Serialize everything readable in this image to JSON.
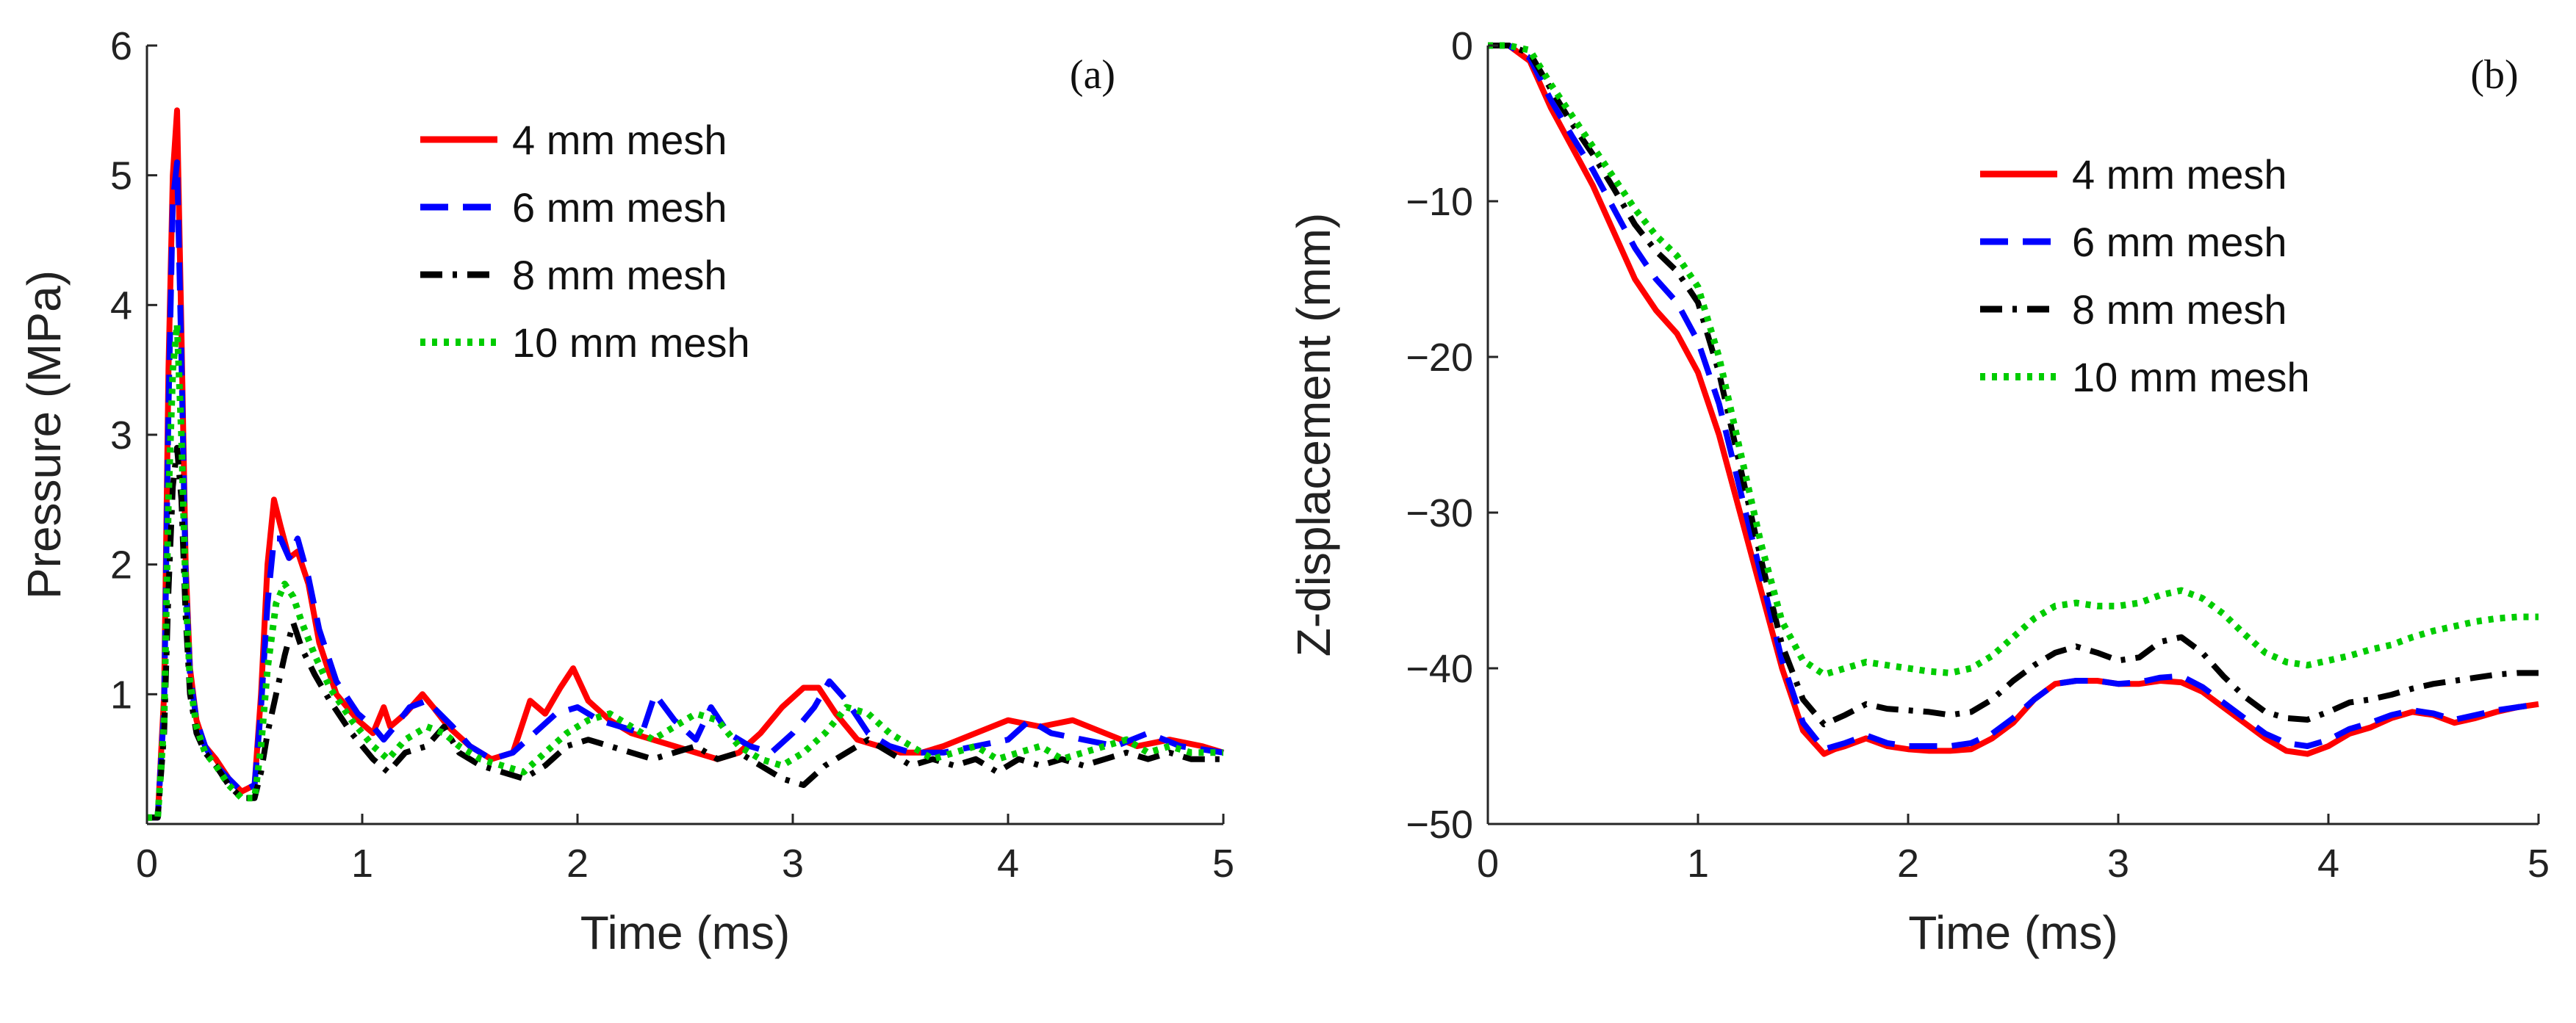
{
  "chart_data": [
    {
      "type": "line",
      "panel_label": "(a)",
      "xlabel": "Time (ms)",
      "ylabel": "Pressure (MPa)",
      "xlim": [
        0,
        5
      ],
      "ylim": [
        0,
        6
      ],
      "xticks": [
        0,
        1,
        2,
        3,
        4,
        5
      ],
      "yticks": [
        1,
        2,
        3,
        4,
        5,
        6
      ],
      "grid": false,
      "legend_position": "top-center",
      "series": [
        {
          "name": "4 mm mesh",
          "color": "#ff0000",
          "style": "solid",
          "x": [
            0,
            0.05,
            0.08,
            0.1,
            0.12,
            0.14,
            0.16,
            0.18,
            0.2,
            0.23,
            0.27,
            0.32,
            0.38,
            0.44,
            0.5,
            0.53,
            0.56,
            0.59,
            0.62,
            0.66,
            0.7,
            0.75,
            0.8,
            0.88,
            0.98,
            1.05,
            1.1,
            1.13,
            1.2,
            1.28,
            1.33,
            1.4,
            1.5,
            1.6,
            1.7,
            1.78,
            1.85,
            1.92,
            1.98,
            2.05,
            2.15,
            2.25,
            2.35,
            2.45,
            2.55,
            2.65,
            2.75,
            2.85,
            2.95,
            3.05,
            3.12,
            3.2,
            3.3,
            3.4,
            3.5,
            3.6,
            3.7,
            3.85,
            4.0,
            4.15,
            4.3,
            4.45,
            4.6,
            4.75,
            4.9,
            5.0
          ],
          "y": [
            0.05,
            0.05,
            1.0,
            3.5,
            5.0,
            5.5,
            3.8,
            2.0,
            1.2,
            0.8,
            0.6,
            0.5,
            0.35,
            0.25,
            0.3,
            1.0,
            2.0,
            2.5,
            2.3,
            2.05,
            2.1,
            1.85,
            1.4,
            1.0,
            0.8,
            0.7,
            0.9,
            0.75,
            0.85,
            1.0,
            0.9,
            0.75,
            0.6,
            0.5,
            0.55,
            0.95,
            0.85,
            1.05,
            1.2,
            0.95,
            0.8,
            0.7,
            0.65,
            0.6,
            0.55,
            0.5,
            0.55,
            0.7,
            0.9,
            1.05,
            1.05,
            0.85,
            0.65,
            0.6,
            0.55,
            0.55,
            0.6,
            0.7,
            0.8,
            0.75,
            0.8,
            0.7,
            0.6,
            0.65,
            0.6,
            0.55
          ]
        },
        {
          "name": "6 mm mesh",
          "color": "#0000ff",
          "style": "dashed",
          "x": [
            0,
            0.05,
            0.08,
            0.1,
            0.12,
            0.14,
            0.16,
            0.18,
            0.2,
            0.23,
            0.27,
            0.32,
            0.38,
            0.44,
            0.5,
            0.53,
            0.56,
            0.59,
            0.62,
            0.66,
            0.7,
            0.75,
            0.8,
            0.88,
            0.98,
            1.05,
            1.1,
            1.15,
            1.22,
            1.3,
            1.36,
            1.42,
            1.5,
            1.6,
            1.7,
            1.8,
            1.9,
            2.0,
            2.1,
            2.2,
            2.3,
            2.36,
            2.45,
            2.55,
            2.62,
            2.7,
            2.8,
            2.9,
            3.0,
            3.1,
            3.17,
            3.25,
            3.35,
            3.45,
            3.55,
            3.7,
            3.85,
            4.0,
            4.1,
            4.2,
            4.35,
            4.5,
            4.65,
            4.8,
            5.0
          ],
          "y": [
            0.05,
            0.05,
            0.9,
            3.2,
            4.8,
            5.1,
            3.6,
            1.9,
            1.15,
            0.8,
            0.6,
            0.45,
            0.35,
            0.25,
            0.3,
            0.9,
            1.7,
            2.2,
            2.2,
            2.05,
            2.2,
            1.9,
            1.5,
            1.1,
            0.85,
            0.75,
            0.65,
            0.75,
            0.9,
            0.95,
            0.85,
            0.75,
            0.6,
            0.5,
            0.55,
            0.7,
            0.85,
            0.9,
            0.8,
            0.75,
            0.7,
            1.0,
            0.8,
            0.65,
            0.9,
            0.7,
            0.6,
            0.55,
            0.7,
            0.9,
            1.1,
            0.95,
            0.7,
            0.6,
            0.55,
            0.55,
            0.6,
            0.65,
            0.8,
            0.7,
            0.65,
            0.6,
            0.7,
            0.6,
            0.55
          ]
        },
        {
          "name": "8 mm mesh",
          "color": "#000000",
          "style": "dashdot",
          "x": [
            0,
            0.05,
            0.08,
            0.1,
            0.12,
            0.14,
            0.16,
            0.18,
            0.2,
            0.23,
            0.27,
            0.32,
            0.38,
            0.44,
            0.5,
            0.53,
            0.56,
            0.6,
            0.64,
            0.68,
            0.72,
            0.78,
            0.85,
            0.95,
            1.05,
            1.12,
            1.2,
            1.3,
            1.38,
            1.45,
            1.55,
            1.65,
            1.75,
            1.85,
            1.95,
            2.05,
            2.15,
            2.25,
            2.35,
            2.45,
            2.55,
            2.65,
            2.75,
            2.85,
            2.95,
            3.05,
            3.15,
            3.25,
            3.35,
            3.45,
            3.55,
            3.65,
            3.75,
            3.85,
            3.95,
            4.05,
            4.15,
            4.25,
            4.35,
            4.45,
            4.55,
            4.65,
            4.75,
            4.85,
            5.0
          ],
          "y": [
            0.05,
            0.05,
            0.7,
            1.8,
            2.6,
            2.9,
            2.5,
            1.6,
            1.0,
            0.7,
            0.55,
            0.45,
            0.3,
            0.2,
            0.2,
            0.4,
            0.7,
            1.0,
            1.3,
            1.55,
            1.35,
            1.15,
            0.95,
            0.7,
            0.5,
            0.4,
            0.55,
            0.6,
            0.75,
            0.55,
            0.45,
            0.4,
            0.35,
            0.45,
            0.6,
            0.65,
            0.6,
            0.55,
            0.5,
            0.55,
            0.6,
            0.5,
            0.55,
            0.45,
            0.35,
            0.3,
            0.45,
            0.55,
            0.65,
            0.55,
            0.45,
            0.5,
            0.45,
            0.5,
            0.4,
            0.5,
            0.45,
            0.5,
            0.45,
            0.5,
            0.55,
            0.5,
            0.55,
            0.5,
            0.5
          ]
        },
        {
          "name": "10 mm mesh",
          "color": "#00cc00",
          "style": "dotted",
          "x": [
            0,
            0.05,
            0.08,
            0.1,
            0.12,
            0.14,
            0.16,
            0.18,
            0.2,
            0.23,
            0.27,
            0.32,
            0.38,
            0.44,
            0.5,
            0.53,
            0.56,
            0.6,
            0.64,
            0.68,
            0.72,
            0.78,
            0.85,
            0.95,
            1.05,
            1.12,
            1.2,
            1.3,
            1.38,
            1.45,
            1.55,
            1.65,
            1.75,
            1.85,
            1.95,
            2.05,
            2.15,
            2.25,
            2.35,
            2.45,
            2.55,
            2.65,
            2.75,
            2.85,
            2.95,
            3.05,
            3.15,
            3.25,
            3.35,
            3.45,
            3.55,
            3.65,
            3.75,
            3.85,
            3.95,
            4.05,
            4.15,
            4.25,
            4.35,
            4.45,
            4.55,
            4.65,
            4.75,
            4.85,
            5.0
          ],
          "y": [
            0.05,
            0.05,
            0.8,
            2.5,
            3.5,
            3.85,
            3.0,
            1.8,
            1.1,
            0.75,
            0.55,
            0.45,
            0.3,
            0.2,
            0.2,
            0.6,
            1.2,
            1.7,
            1.85,
            1.75,
            1.55,
            1.3,
            1.05,
            0.8,
            0.6,
            0.5,
            0.65,
            0.75,
            0.7,
            0.6,
            0.5,
            0.45,
            0.4,
            0.55,
            0.7,
            0.8,
            0.85,
            0.75,
            0.65,
            0.75,
            0.85,
            0.8,
            0.6,
            0.5,
            0.45,
            0.55,
            0.7,
            0.9,
            0.85,
            0.7,
            0.6,
            0.5,
            0.55,
            0.6,
            0.5,
            0.55,
            0.6,
            0.5,
            0.55,
            0.6,
            0.65,
            0.55,
            0.6,
            0.55,
            0.55
          ]
        }
      ]
    },
    {
      "type": "line",
      "panel_label": "(b)",
      "xlabel": "Time (ms)",
      "ylabel": "Z-displacement (mm)",
      "xlim": [
        0,
        5
      ],
      "ylim": [
        -50,
        0
      ],
      "xticks": [
        0,
        1,
        2,
        3,
        4,
        5
      ],
      "yticks": [
        0,
        -10,
        -20,
        -30,
        -40,
        -50
      ],
      "ytick_labels": [
        "0",
        "−10",
        "−20",
        "−30",
        "−40",
        "−50"
      ],
      "grid": false,
      "legend_position": "top-right",
      "series": [
        {
          "name": "4 mm mesh",
          "color": "#ff0000",
          "style": "solid",
          "x": [
            0,
            0.1,
            0.2,
            0.3,
            0.4,
            0.5,
            0.6,
            0.7,
            0.8,
            0.9,
            1.0,
            1.1,
            1.2,
            1.3,
            1.4,
            1.5,
            1.6,
            1.65,
            1.7,
            1.8,
            1.9,
            2.0,
            2.1,
            2.2,
            2.3,
            2.4,
            2.5,
            2.6,
            2.7,
            2.8,
            2.9,
            3.0,
            3.1,
            3.2,
            3.3,
            3.4,
            3.5,
            3.6,
            3.7,
            3.8,
            3.9,
            4.0,
            4.1,
            4.2,
            4.3,
            4.4,
            4.5,
            4.6,
            4.7,
            4.8,
            4.9,
            5.0
          ],
          "y": [
            0,
            0,
            -1,
            -4,
            -6.5,
            -9,
            -12,
            -15,
            -17,
            -18.5,
            -21,
            -25,
            -30,
            -35,
            -40,
            -44,
            -45.5,
            -45.2,
            -45,
            -44.5,
            -45,
            -45.2,
            -45.3,
            -45.3,
            -45.2,
            -44.5,
            -43.5,
            -42,
            -41,
            -40.8,
            -40.8,
            -41,
            -41,
            -40.8,
            -40.9,
            -41.5,
            -42.5,
            -43.5,
            -44.5,
            -45.3,
            -45.5,
            -45,
            -44.2,
            -43.8,
            -43.2,
            -42.8,
            -43,
            -43.5,
            -43.2,
            -42.8,
            -42.5,
            -42.3
          ]
        },
        {
          "name": "6 mm mesh",
          "color": "#0000ff",
          "style": "dashed",
          "x": [
            0,
            0.1,
            0.2,
            0.3,
            0.4,
            0.5,
            0.6,
            0.7,
            0.8,
            0.9,
            1.0,
            1.1,
            1.2,
            1.3,
            1.4,
            1.5,
            1.6,
            1.65,
            1.7,
            1.8,
            1.9,
            2.0,
            2.1,
            2.2,
            2.3,
            2.4,
            2.5,
            2.6,
            2.7,
            2.8,
            2.9,
            3.0,
            3.1,
            3.2,
            3.3,
            3.4,
            3.5,
            3.6,
            3.7,
            3.8,
            3.9,
            4.0,
            4.1,
            4.2,
            4.3,
            4.4,
            4.5,
            4.6,
            4.7,
            4.8,
            4.9,
            5.0
          ],
          "y": [
            0,
            0,
            -0.8,
            -3.5,
            -5.8,
            -8,
            -10.5,
            -13,
            -15,
            -16.5,
            -19,
            -23,
            -28.5,
            -34,
            -39.5,
            -43.5,
            -45.2,
            -45,
            -44.8,
            -44.3,
            -44.8,
            -45,
            -45,
            -45,
            -44.8,
            -44.2,
            -43.2,
            -42,
            -41,
            -40.8,
            -40.8,
            -41,
            -40.9,
            -40.6,
            -40.5,
            -41.2,
            -42.2,
            -43.2,
            -44.2,
            -44.8,
            -45,
            -44.6,
            -43.9,
            -43.5,
            -43,
            -42.7,
            -42.9,
            -43.3,
            -43,
            -42.7,
            -42.5,
            -42.3
          ]
        },
        {
          "name": "8 mm mesh",
          "color": "#000000",
          "style": "dashdot",
          "x": [
            0,
            0.1,
            0.2,
            0.3,
            0.4,
            0.5,
            0.6,
            0.7,
            0.8,
            0.9,
            1.0,
            1.1,
            1.2,
            1.3,
            1.4,
            1.5,
            1.6,
            1.65,
            1.7,
            1.8,
            1.9,
            2.0,
            2.1,
            2.2,
            2.3,
            2.4,
            2.5,
            2.6,
            2.7,
            2.8,
            2.9,
            3.0,
            3.1,
            3.2,
            3.3,
            3.4,
            3.5,
            3.6,
            3.7,
            3.8,
            3.9,
            4.0,
            4.1,
            4.2,
            4.3,
            4.4,
            4.5,
            4.6,
            4.7,
            4.8,
            4.9,
            5.0
          ],
          "y": [
            0,
            0,
            -0.5,
            -2.8,
            -5,
            -7,
            -9.2,
            -11.5,
            -13.2,
            -14.5,
            -16.5,
            -21,
            -27,
            -33,
            -38.5,
            -42,
            -43.6,
            -43.3,
            -43,
            -42.3,
            -42.6,
            -42.7,
            -42.8,
            -43,
            -42.8,
            -42,
            -40.8,
            -39.8,
            -39,
            -38.6,
            -39,
            -39.5,
            -39.3,
            -38.3,
            -38,
            -39,
            -40.5,
            -41.8,
            -42.8,
            -43.2,
            -43.3,
            -42.8,
            -42.2,
            -42,
            -41.7,
            -41.3,
            -41,
            -40.8,
            -40.6,
            -40.4,
            -40.3,
            -40.3
          ]
        },
        {
          "name": "10 mm mesh",
          "color": "#00cc00",
          "style": "dotted",
          "x": [
            0,
            0.1,
            0.2,
            0.3,
            0.4,
            0.5,
            0.6,
            0.7,
            0.8,
            0.9,
            1.0,
            1.1,
            1.2,
            1.3,
            1.4,
            1.5,
            1.6,
            1.65,
            1.7,
            1.8,
            1.9,
            2.0,
            2.1,
            2.2,
            2.3,
            2.4,
            2.5,
            2.6,
            2.7,
            2.8,
            2.9,
            3.0,
            3.1,
            3.2,
            3.3,
            3.4,
            3.5,
            3.6,
            3.7,
            3.8,
            3.9,
            4.0,
            4.1,
            4.2,
            4.3,
            4.4,
            4.5,
            4.6,
            4.7,
            4.8,
            4.9,
            5.0
          ],
          "y": [
            0,
            0,
            -0.3,
            -2.5,
            -4.5,
            -6.5,
            -8.5,
            -10.5,
            -12.2,
            -13.5,
            -15.5,
            -20,
            -26,
            -32,
            -37,
            -39.5,
            -40.4,
            -40.2,
            -40,
            -39.6,
            -39.8,
            -40,
            -40.2,
            -40.3,
            -40,
            -39.2,
            -38,
            -36.8,
            -36,
            -35.8,
            -36,
            -36,
            -35.8,
            -35.3,
            -35,
            -35.5,
            -36.5,
            -37.8,
            -39,
            -39.6,
            -39.8,
            -39.5,
            -39.2,
            -38.8,
            -38.5,
            -38,
            -37.6,
            -37.3,
            -37,
            -36.8,
            -36.7,
            -36.7
          ]
        }
      ]
    }
  ]
}
